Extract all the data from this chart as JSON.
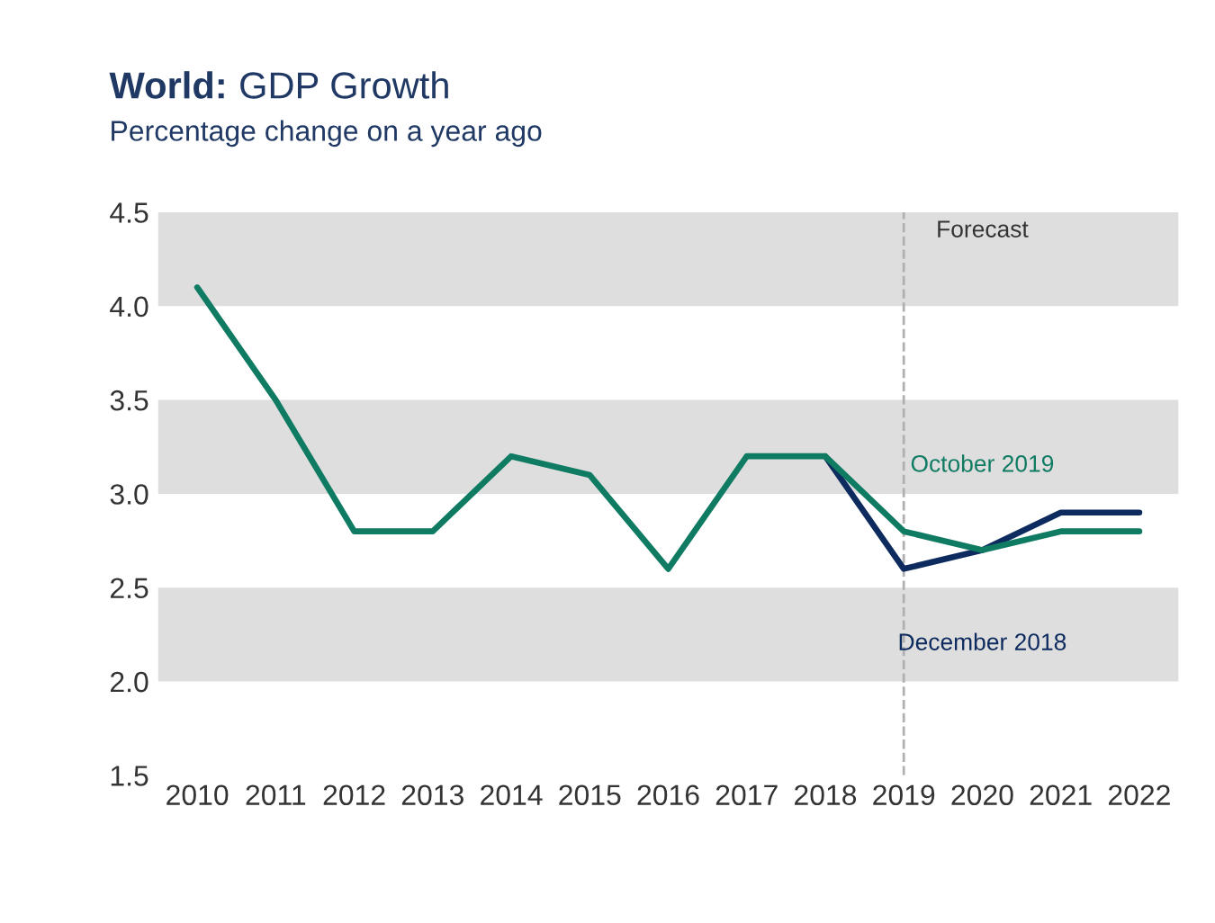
{
  "chart_data": {
    "type": "line",
    "title": "World: GDP Growth",
    "subtitle": "Percentage change on a year ago",
    "categories": [
      "2010",
      "2011",
      "2012",
      "2013",
      "2014",
      "2015",
      "2016",
      "2017",
      "2018",
      "2019",
      "2020",
      "2021",
      "2022"
    ],
    "series": [
      {
        "name": "December 2018",
        "color": "#0d2b5e",
        "values": [
          null,
          null,
          null,
          null,
          null,
          null,
          null,
          null,
          3.2,
          2.6,
          2.7,
          2.9,
          2.9
        ]
      },
      {
        "name": "October 2019",
        "color": "#0f7b62",
        "values": [
          4.1,
          3.5,
          2.8,
          2.8,
          3.2,
          3.1,
          2.6,
          3.2,
          3.2,
          2.8,
          2.7,
          2.8,
          2.8
        ]
      }
    ],
    "ylim": [
      1.5,
      4.5
    ],
    "yticks": [
      {
        "value": 1.5,
        "label": "1.5"
      },
      {
        "value": 2.0,
        "label": "2.0"
      },
      {
        "value": 2.5,
        "label": "2.5"
      },
      {
        "value": 3.0,
        "label": "3.0"
      },
      {
        "value": 3.5,
        "label": "3.5"
      },
      {
        "value": 4.0,
        "label": "4.0"
      },
      {
        "value": 4.5,
        "label": "4.5"
      }
    ],
    "bands": [
      {
        "axis": "y",
        "from": 2.0,
        "to": 2.5,
        "color": "#dedede"
      },
      {
        "axis": "y",
        "from": 3.0,
        "to": 3.5,
        "color": "#dedede"
      },
      {
        "axis": "y",
        "from": 4.0,
        "to": 4.5,
        "color": "#dedede"
      }
    ],
    "ref_lines": [
      {
        "axis": "x",
        "value": "2019",
        "label": "Forecast",
        "color": "#b0b0b0",
        "line_style": "dashed"
      }
    ],
    "grid": false,
    "legend": false,
    "marker": "none",
    "line_style": "solid"
  }
}
